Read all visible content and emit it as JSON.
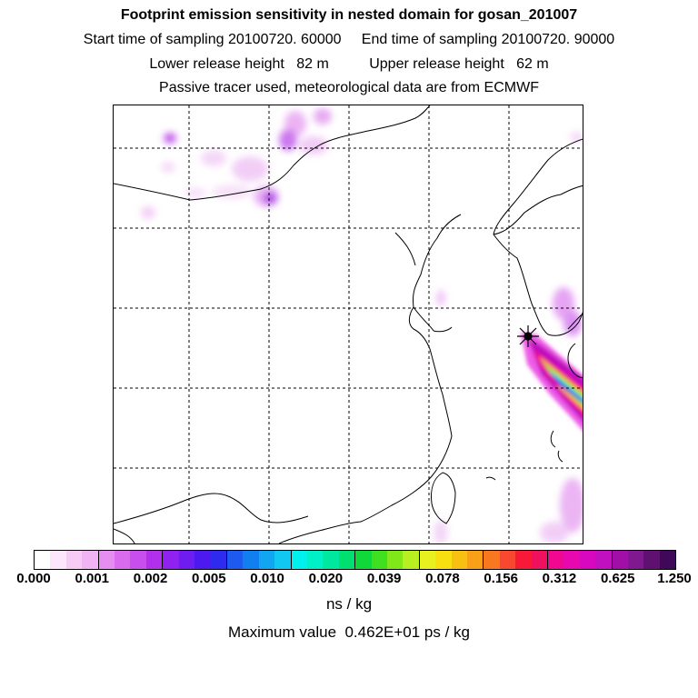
{
  "header": {
    "title": "Footprint emission sensitivity in nested domain for gosan_201007",
    "sampling_line": "Start time of sampling 20100720. 60000     End time of sampling 20100720. 90000",
    "release_line": "Lower release height   82 m          Upper release height   62 m",
    "tracer_line": "Passive tracer used, meteorological data are from ECMWF"
  },
  "map": {
    "site_marker": "receptor-star-icon"
  },
  "colorbar": {
    "colors": [
      "#ffffff",
      "#fbe6fb",
      "#f6ccf7",
      "#f0b3f3",
      "#e58ef0",
      "#d96cee",
      "#c84fee",
      "#b32fee",
      "#8f22f0",
      "#6e1df0",
      "#4d19f0",
      "#2f2bee",
      "#1e5af0",
      "#1080f0",
      "#12a6f2",
      "#10c8f2",
      "#00f0f0",
      "#00f0c8",
      "#00e8a0",
      "#00e070",
      "#10d83a",
      "#40e020",
      "#80e818",
      "#b8ef20",
      "#e8f020",
      "#f8e010",
      "#f8c010",
      "#f8a018",
      "#f87820",
      "#f84830",
      "#f81838",
      "#f01060",
      "#f00890",
      "#e808b0",
      "#d808c0",
      "#c010c0",
      "#a010a8",
      "#801890",
      "#601070",
      "#400858"
    ],
    "tick_labels": [
      "0.000",
      "0.001",
      "0.002",
      "0.005",
      "0.010",
      "0.020",
      "0.039",
      "0.078",
      "0.156",
      "0.312",
      "0.625",
      "1.250"
    ],
    "unit": "ns / kg"
  },
  "footer": {
    "max_value": "Maximum value  0.462E+01 ps / kg"
  }
}
